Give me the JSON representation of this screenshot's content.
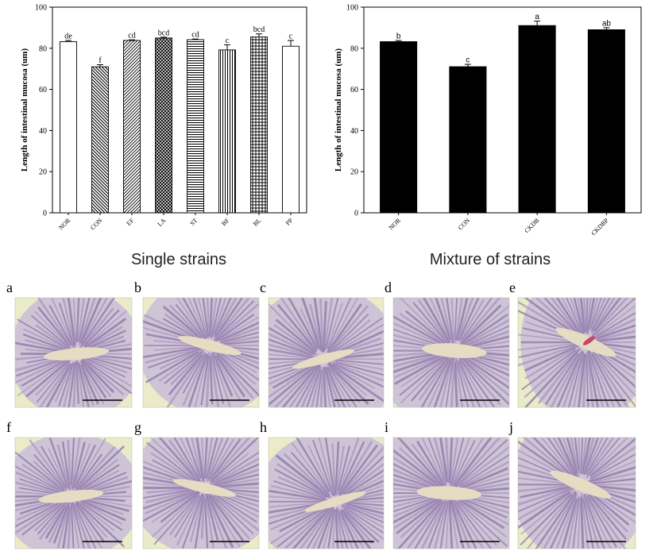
{
  "chart_data": [
    {
      "type": "bar",
      "title": "Single strains",
      "ylabel": "Length of intestinal mucosa (um)",
      "xlabel": "",
      "ylim": [
        0,
        100
      ],
      "yticks": [
        0,
        20,
        40,
        60,
        80,
        100
      ],
      "categories": [
        "NOR",
        "CON",
        "EF",
        "LA",
        "ST",
        "BF",
        "BL",
        "PP"
      ],
      "values": [
        83.2,
        71.0,
        83.8,
        85.0,
        84.2,
        79.2,
        85.5,
        81.0
      ],
      "errors": [
        0.6,
        1.0,
        0.3,
        0.4,
        0.3,
        2.5,
        1.5,
        2.8
      ],
      "labels": [
        "de",
        "f",
        "cd",
        "bcd",
        "cd",
        "c",
        "bcd",
        "c"
      ],
      "patterns": [
        "white",
        "diag-back",
        "diag-fwd",
        "crosshatch",
        "horizontal",
        "vertical",
        "grid",
        "white"
      ]
    },
    {
      "type": "bar",
      "title": "Mixture of strains",
      "ylabel": "Length of intestinal mucosa (um)",
      "xlabel": "",
      "ylim": [
        0,
        100
      ],
      "yticks": [
        0,
        20,
        40,
        60,
        80,
        100
      ],
      "categories": [
        "NOR",
        "CON",
        "CKDB",
        "CKDBP"
      ],
      "values": [
        83.2,
        71.0,
        91.0,
        89.0
      ],
      "errors": [
        0.6,
        1.2,
        2.2,
        1.0
      ],
      "labels": [
        "b",
        "c",
        "a",
        "ab"
      ],
      "colors": [
        "#3a3a3a",
        "#5a5a5a",
        "#7f7f7f",
        "#a8a8a8"
      ]
    }
  ],
  "panels": [
    "a",
    "b",
    "c",
    "d",
    "e",
    "f",
    "g",
    "h",
    "i",
    "j"
  ]
}
